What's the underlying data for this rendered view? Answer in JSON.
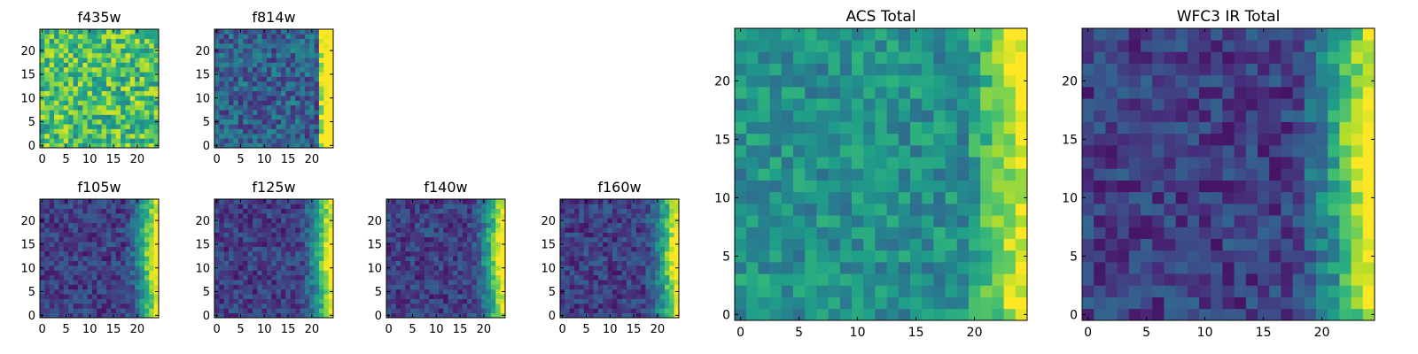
{
  "chart_data": [
    {
      "id": "f435w",
      "type": "heatmap",
      "title": "f435w",
      "grid_size": 25,
      "pattern": "noise-high",
      "xticks": [
        "0",
        "5",
        "10",
        "15",
        "20"
      ],
      "yticks": [
        "0",
        "5",
        "10",
        "15",
        "20"
      ],
      "grid": false
    },
    {
      "id": "f814w",
      "type": "heatmap",
      "title": "f814w",
      "grid_size": 25,
      "pattern": "edge-right",
      "xticks": [
        "0",
        "5",
        "10",
        "15",
        "20"
      ],
      "yticks": [
        "0",
        "5",
        "10",
        "15",
        "20"
      ],
      "grid": false
    },
    {
      "id": "f105w",
      "type": "heatmap",
      "title": "f105w",
      "grid_size": 25,
      "pattern": "edge-right-strong",
      "xticks": [
        "0",
        "5",
        "10",
        "15",
        "20"
      ],
      "yticks": [
        "0",
        "5",
        "10",
        "15",
        "20"
      ],
      "grid": false
    },
    {
      "id": "f125w",
      "type": "heatmap",
      "title": "f125w",
      "grid_size": 25,
      "pattern": "edge-right-strong",
      "xticks": [
        "0",
        "5",
        "10",
        "15",
        "20"
      ],
      "yticks": [
        "0",
        "5",
        "10",
        "15",
        "20"
      ],
      "grid": false
    },
    {
      "id": "f140w",
      "type": "heatmap",
      "title": "f140w",
      "grid_size": 25,
      "pattern": "edge-right-strong",
      "xticks": [
        "0",
        "5",
        "10",
        "15",
        "20"
      ],
      "yticks": [
        "0",
        "5",
        "10",
        "15",
        "20"
      ],
      "grid": false
    },
    {
      "id": "f160w",
      "type": "heatmap",
      "title": "f160w",
      "grid_size": 25,
      "pattern": "edge-right-strong",
      "xticks": [
        "0",
        "5",
        "10",
        "15",
        "20"
      ],
      "yticks": [
        "0",
        "5",
        "10",
        "15",
        "20"
      ],
      "grid": false
    },
    {
      "id": "acs-total",
      "type": "heatmap",
      "title": "ACS Total",
      "grid_size": 25,
      "pattern": "mid-edge",
      "xticks": [
        "0",
        "5",
        "10",
        "15",
        "20"
      ],
      "yticks": [
        "0",
        "5",
        "10",
        "15",
        "20"
      ],
      "grid": false
    },
    {
      "id": "wfc3-ir-total",
      "type": "heatmap",
      "title": "WFC3 IR Total",
      "grid_size": 25,
      "pattern": "edge-right-strong",
      "xticks": [
        "0",
        "5",
        "10",
        "15",
        "20"
      ],
      "yticks": [
        "0",
        "5",
        "10",
        "15",
        "20"
      ],
      "grid": false
    }
  ],
  "colormap": [
    "#440154",
    "#482878",
    "#3e4989",
    "#31688e",
    "#26828e",
    "#1f9e89",
    "#35b779",
    "#6ece58",
    "#b5de2b",
    "#fde725"
  ]
}
